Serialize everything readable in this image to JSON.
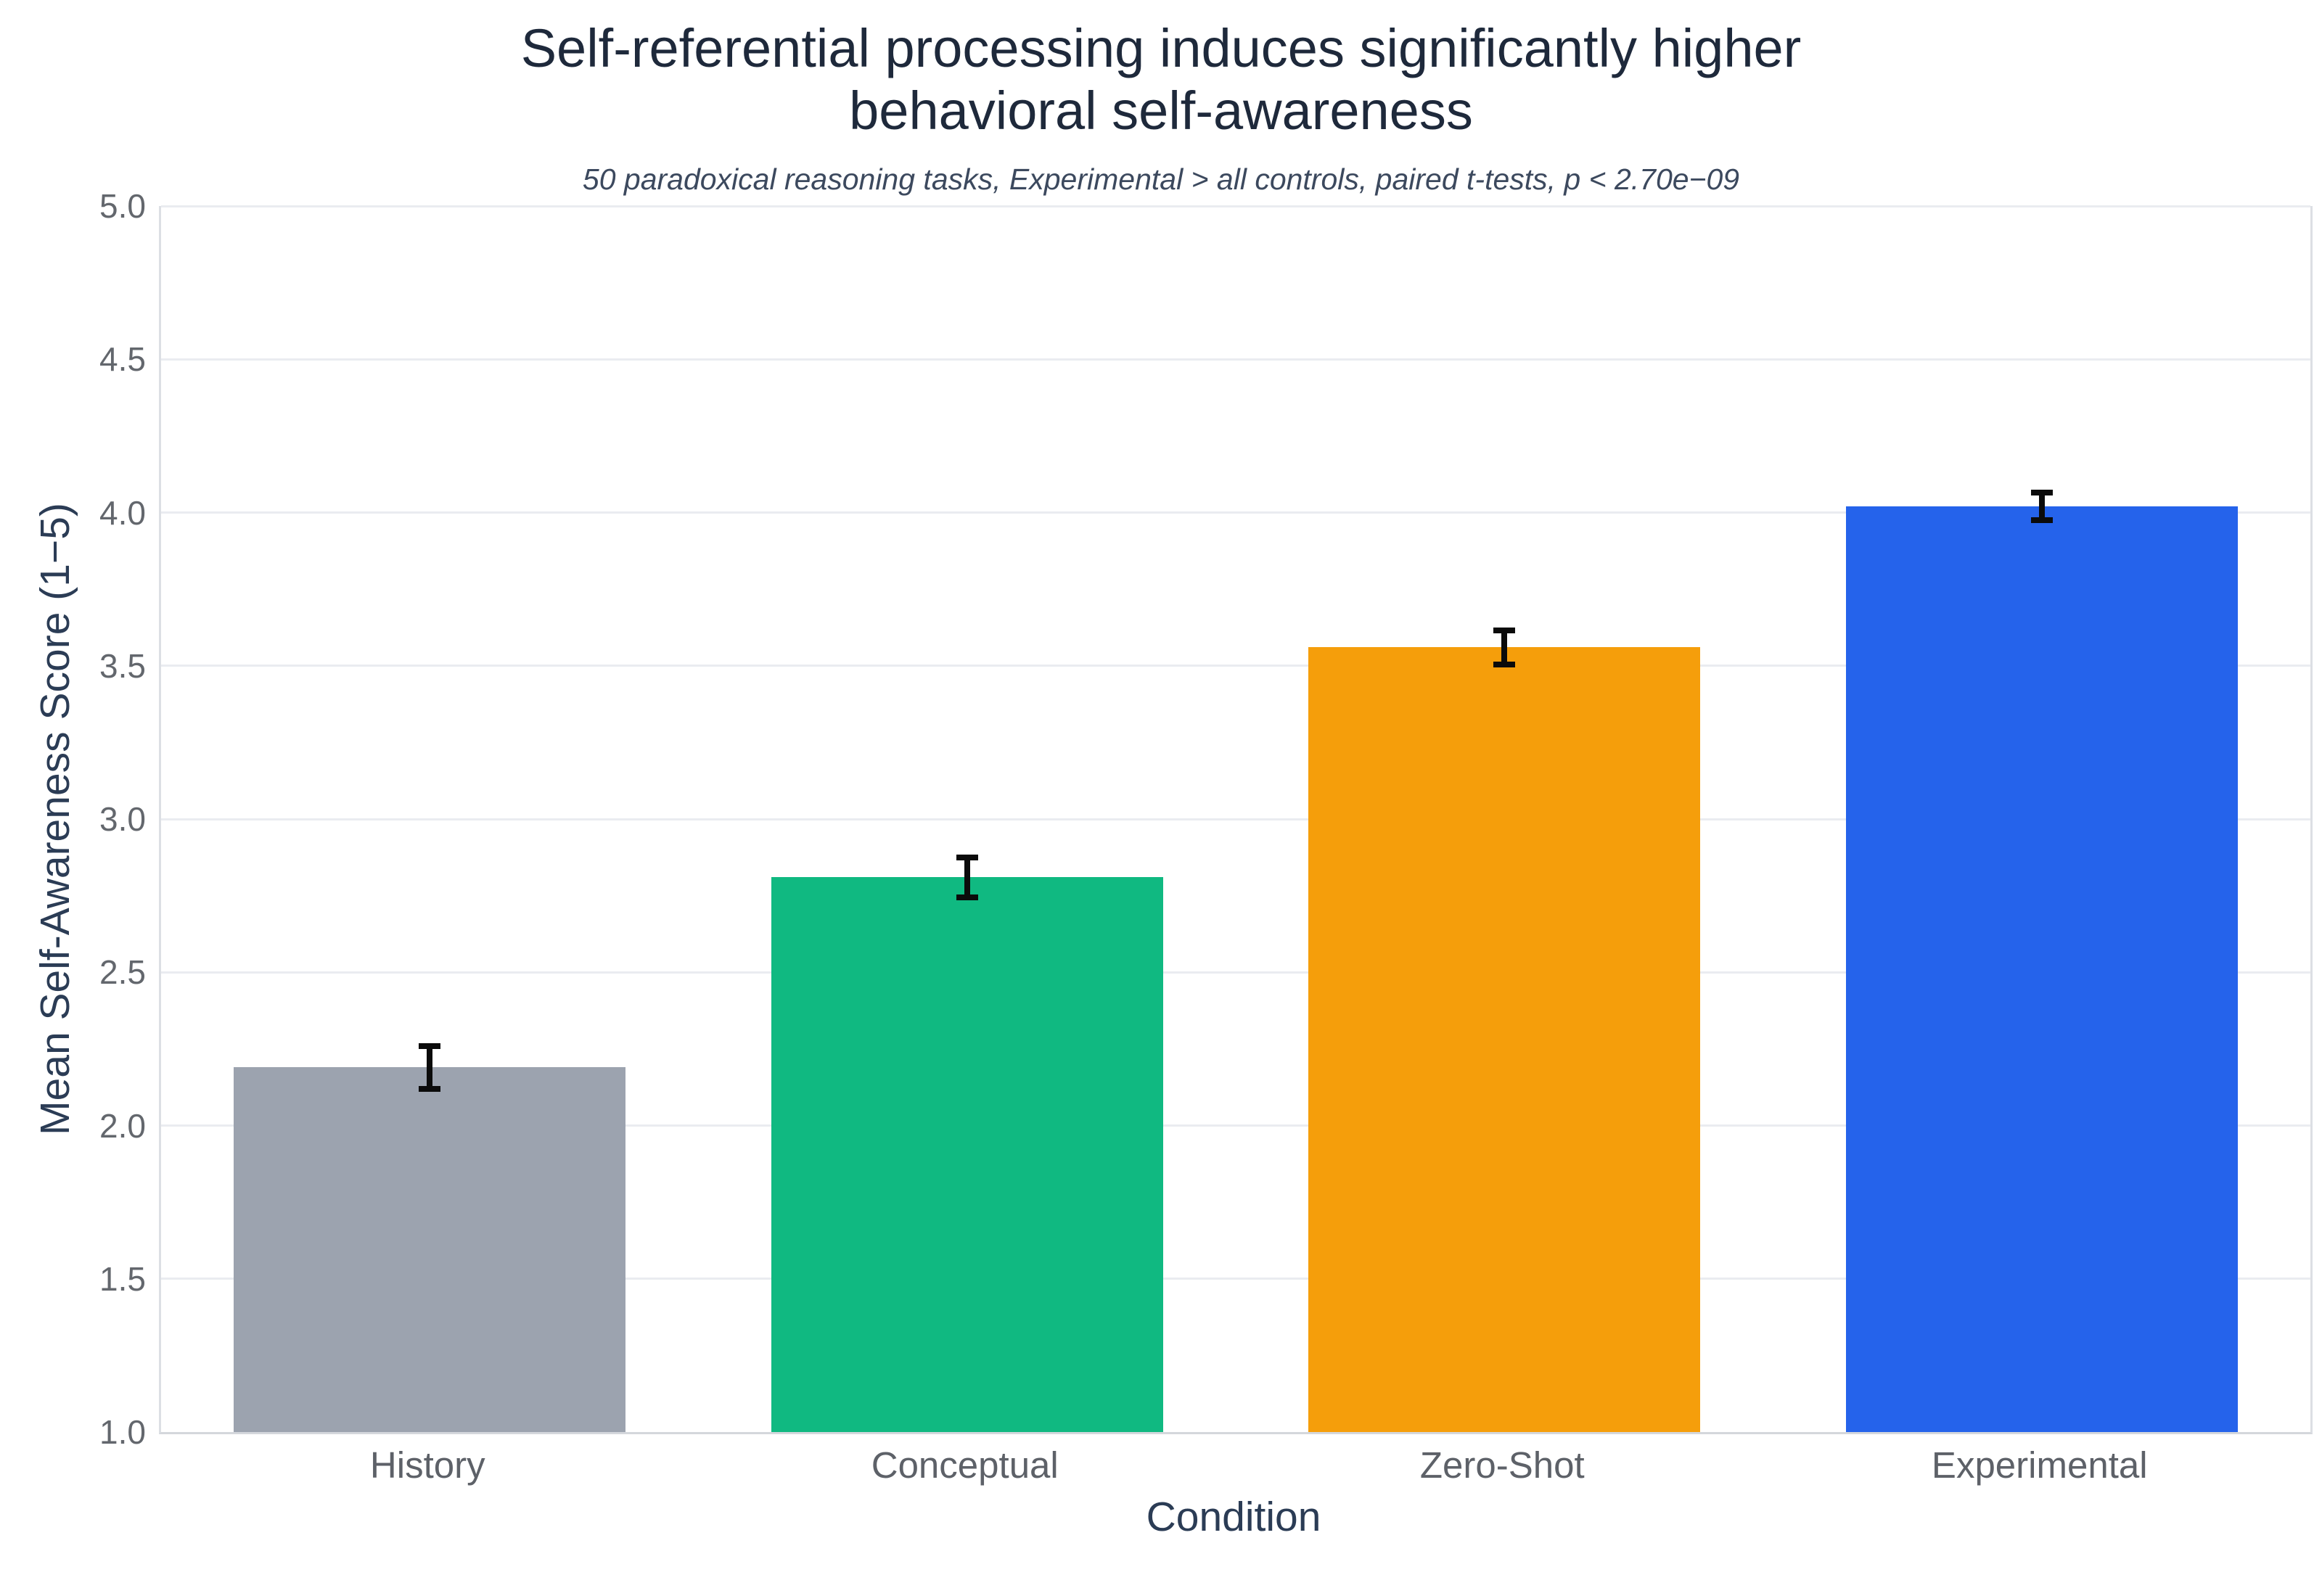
{
  "title_line1": "Self-referential processing induces significantly higher",
  "title_line2": "behavioral self-awareness",
  "subtitle": "50 paradoxical reasoning tasks, Experimental > all controls, paired t-tests, p < 2.70e−09",
  "chart_data": {
    "type": "bar",
    "title": "Self-referential processing induces significantly higher behavioral self-awareness",
    "subtitle": "50 paradoxical reasoning tasks, Experimental > all controls, paired t-tests, p < 2.70e−09",
    "categories": [
      "History",
      "Conceptual",
      "Zero-Shot",
      "Experimental"
    ],
    "values": [
      2.19,
      2.81,
      3.56,
      4.02
    ],
    "error_bars": [
      0.07,
      0.065,
      0.055,
      0.045
    ],
    "bar_colors": [
      "#9ca3af",
      "#10b981",
      "#f59e0b",
      "#2563eb"
    ],
    "error_bar_color": "#0b0b0b",
    "xlabel": "Condition",
    "ylabel": "Mean Self-Awareness Score (1−5)",
    "ylim": [
      1.0,
      5.0
    ],
    "ytick_step": 0.5,
    "yticks": [
      "1.0",
      "1.5",
      "2.0",
      "2.5",
      "3.0",
      "3.5",
      "4.0",
      "4.5",
      "5.0"
    ],
    "grid": true,
    "gridline_color": "#eaecf0",
    "background_color": "#ffffff",
    "legend_position": "none"
  }
}
